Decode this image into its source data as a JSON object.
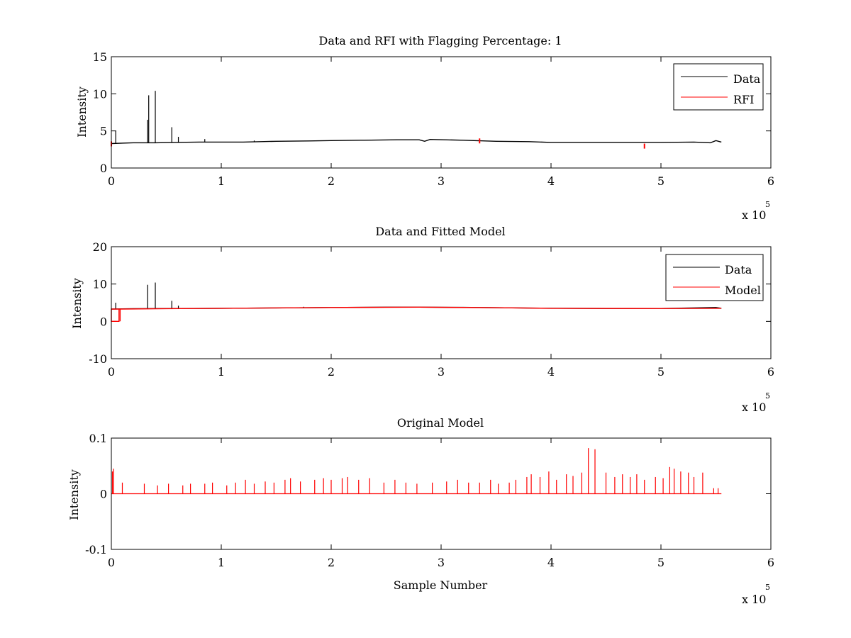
{
  "figure": {
    "background": "#ffffff"
  },
  "chart_data": [
    {
      "type": "line",
      "title": "Data and RFI with Flagging Percentage: 1",
      "xlabel": "",
      "ylabel": "Intensity",
      "xlim": [
        0,
        6
      ],
      "ylim": [
        0,
        15
      ],
      "x_multiplier_label": "x 10",
      "x_multiplier_exponent": "5",
      "x_ticks": [
        0,
        1,
        2,
        3,
        4,
        5,
        6
      ],
      "y_ticks": [
        0,
        5,
        10,
        15
      ],
      "grid": false,
      "legend_position": "top-right",
      "legend": [
        {
          "name": "Data",
          "color": "#000000"
        },
        {
          "name": "RFI",
          "color": "#ff0000"
        }
      ],
      "series": [
        {
          "name": "Data",
          "color": "#000000",
          "points": [
            [
              0,
              3.3
            ],
            [
              0.1,
              3.35
            ],
            [
              0.2,
              3.4
            ],
            [
              0.4,
              3.4
            ],
            [
              0.6,
              3.45
            ],
            [
              0.8,
              3.5
            ],
            [
              1.0,
              3.5
            ],
            [
              1.2,
              3.5
            ],
            [
              1.5,
              3.6
            ],
            [
              1.8,
              3.65
            ],
            [
              2.0,
              3.7
            ],
            [
              2.3,
              3.75
            ],
            [
              2.6,
              3.8
            ],
            [
              2.8,
              3.8
            ],
            [
              2.85,
              3.6
            ],
            [
              2.9,
              3.85
            ],
            [
              3.2,
              3.75
            ],
            [
              3.5,
              3.6
            ],
            [
              3.8,
              3.55
            ],
            [
              4.0,
              3.45
            ],
            [
              4.5,
              3.45
            ],
            [
              5.0,
              3.45
            ],
            [
              5.3,
              3.5
            ],
            [
              5.45,
              3.4
            ],
            [
              5.5,
              3.7
            ],
            [
              5.55,
              3.5
            ]
          ],
          "spikes": [
            [
              0.04,
              5.0
            ],
            [
              0.33,
              6.5
            ],
            [
              0.34,
              9.8
            ],
            [
              0.4,
              10.4
            ],
            [
              0.55,
              5.5
            ],
            [
              0.61,
              4.2
            ],
            [
              0.85,
              3.9
            ],
            [
              1.3,
              3.7
            ]
          ]
        },
        {
          "name": "RFI",
          "color": "#ff0000",
          "segments": [
            [
              0.0,
              3.3
            ],
            [
              3.35,
              3.7
            ],
            [
              4.85,
              3.0
            ]
          ]
        }
      ]
    },
    {
      "type": "line",
      "title": "Data and Fitted Model",
      "xlabel": "",
      "ylabel": "Intensity",
      "xlim": [
        0,
        6
      ],
      "ylim": [
        -10,
        20
      ],
      "x_multiplier_label": "x 10",
      "x_multiplier_exponent": "5",
      "x_ticks": [
        0,
        1,
        2,
        3,
        4,
        5,
        6
      ],
      "y_ticks": [
        -10,
        0,
        10,
        20
      ],
      "grid": false,
      "legend_position": "top-right",
      "legend": [
        {
          "name": "Data",
          "color": "#000000"
        },
        {
          "name": "Model",
          "color": "#ff0000"
        }
      ],
      "series": [
        {
          "name": "Data",
          "color": "#000000",
          "points": [
            [
              0,
              3.3
            ],
            [
              0.2,
              3.4
            ],
            [
              0.6,
              3.45
            ],
            [
              1.0,
              3.5
            ],
            [
              1.5,
              3.6
            ],
            [
              2.0,
              3.7
            ],
            [
              2.5,
              3.8
            ],
            [
              2.8,
              3.8
            ],
            [
              3.2,
              3.75
            ],
            [
              3.8,
              3.55
            ],
            [
              4.5,
              3.45
            ],
            [
              5.0,
              3.45
            ],
            [
              5.5,
              3.7
            ],
            [
              5.55,
              3.5
            ]
          ],
          "spikes": [
            [
              0.04,
              5.0
            ],
            [
              0.33,
              9.8
            ],
            [
              0.4,
              10.4
            ],
            [
              0.55,
              5.5
            ],
            [
              0.61,
              4.2
            ],
            [
              1.75,
              3.9
            ]
          ]
        },
        {
          "name": "Model",
          "color": "#ff0000",
          "points": [
            [
              0,
              3.3
            ],
            [
              0.07,
              3.3
            ],
            [
              0.07,
              0
            ],
            [
              0.0,
              0
            ],
            [
              0.0,
              3.3
            ],
            [
              0.08,
              3.3
            ],
            [
              0.08,
              0
            ],
            [
              0.08,
              3.3
            ],
            [
              0.5,
              3.4
            ],
            [
              1.0,
              3.5
            ],
            [
              2.0,
              3.7
            ],
            [
              2.8,
              3.8
            ],
            [
              3.5,
              3.65
            ],
            [
              4.0,
              3.5
            ],
            [
              5.0,
              3.45
            ],
            [
              5.55,
              3.5
            ]
          ]
        }
      ]
    },
    {
      "type": "line",
      "title": "Original Model",
      "xlabel": "Sample Number",
      "ylabel": "Intensity",
      "xlim": [
        0,
        6
      ],
      "ylim": [
        -0.1,
        0.1
      ],
      "x_multiplier_label": "x 10",
      "x_multiplier_exponent": "5",
      "x_ticks": [
        0,
        1,
        2,
        3,
        4,
        5,
        6
      ],
      "y_ticks": [
        -0.1,
        0,
        0.1
      ],
      "y_tick_labels": [
        "-0.1",
        "0",
        "0.1"
      ],
      "grid": false,
      "series": [
        {
          "name": "",
          "color": "#ff0000",
          "baseline": 0,
          "x_end": 5.55,
          "spikes": [
            [
              0.01,
              0.04
            ],
            [
              0.02,
              0.045
            ],
            [
              0.1,
              0.02
            ],
            [
              0.3,
              0.018
            ],
            [
              0.42,
              0.015
            ],
            [
              0.52,
              0.018
            ],
            [
              0.65,
              0.015
            ],
            [
              0.72,
              0.018
            ],
            [
              0.85,
              0.018
            ],
            [
              0.92,
              0.02
            ],
            [
              1.05,
              0.015
            ],
            [
              1.13,
              0.02
            ],
            [
              1.22,
              0.025
            ],
            [
              1.3,
              0.018
            ],
            [
              1.4,
              0.022
            ],
            [
              1.48,
              0.02
            ],
            [
              1.58,
              0.025
            ],
            [
              1.63,
              0.028
            ],
            [
              1.72,
              0.022
            ],
            [
              1.85,
              0.025
            ],
            [
              1.93,
              0.028
            ],
            [
              2.0,
              0.025
            ],
            [
              2.1,
              0.028
            ],
            [
              2.15,
              0.03
            ],
            [
              2.25,
              0.025
            ],
            [
              2.35,
              0.028
            ],
            [
              2.48,
              0.02
            ],
            [
              2.58,
              0.025
            ],
            [
              2.68,
              0.02
            ],
            [
              2.78,
              0.018
            ],
            [
              2.92,
              0.02
            ],
            [
              3.05,
              0.022
            ],
            [
              3.15,
              0.025
            ],
            [
              3.25,
              0.02
            ],
            [
              3.35,
              0.02
            ],
            [
              3.45,
              0.025
            ],
            [
              3.52,
              0.018
            ],
            [
              3.62,
              0.02
            ],
            [
              3.68,
              0.025
            ],
            [
              3.78,
              0.03
            ],
            [
              3.82,
              0.035
            ],
            [
              3.9,
              0.03
            ],
            [
              3.98,
              0.04
            ],
            [
              4.05,
              0.025
            ],
            [
              4.14,
              0.035
            ],
            [
              4.2,
              0.032
            ],
            [
              4.28,
              0.038
            ],
            [
              4.34,
              0.082
            ],
            [
              4.4,
              0.08
            ],
            [
              4.5,
              0.038
            ],
            [
              4.58,
              0.03
            ],
            [
              4.65,
              0.035
            ],
            [
              4.72,
              0.03
            ],
            [
              4.78,
              0.035
            ],
            [
              4.85,
              0.025
            ],
            [
              4.95,
              0.03
            ],
            [
              5.02,
              0.028
            ],
            [
              5.08,
              0.048
            ],
            [
              5.12,
              0.045
            ],
            [
              5.18,
              0.04
            ],
            [
              5.25,
              0.038
            ],
            [
              5.3,
              0.03
            ],
            [
              5.38,
              0.038
            ],
            [
              5.48,
              0.01
            ],
            [
              5.52,
              0.01
            ]
          ]
        }
      ]
    }
  ]
}
